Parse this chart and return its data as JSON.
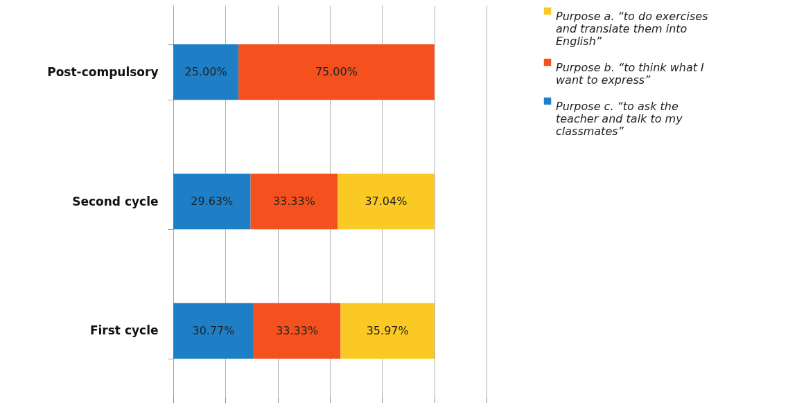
{
  "chart_data": {
    "type": "bar",
    "orientation": "horizontal",
    "stacked": true,
    "categories": [
      "Post-compulsory",
      "Second cycle",
      "First cycle"
    ],
    "series": [
      {
        "name": "Purpose c. “to ask the teacher and talk to my classmates”",
        "color": "#1f7fc6",
        "values": [
          25.0,
          29.63,
          30.77
        ],
        "value_labels": [
          "25.00%",
          "29.63%",
          "30.77%"
        ]
      },
      {
        "name": "Purpose b. “to think what I want to express”",
        "color": "#f4511e",
        "values": [
          75.0,
          33.33,
          33.33
        ],
        "value_labels": [
          "75.00%",
          "33.33%",
          "33.33%"
        ]
      },
      {
        "name": "Purpose a. “to do exercises and translate them into English”",
        "color": "#fbc924",
        "values": [
          null,
          37.04,
          35.97
        ],
        "value_labels": [
          null,
          "37.04%",
          "35.97%"
        ]
      }
    ],
    "xlim": [
      0,
      120
    ],
    "xticks": [
      {
        "value": 0,
        "label": null
      },
      {
        "value": 20,
        "label": null
      },
      {
        "value": 40,
        "label": null
      },
      {
        "value": 60,
        "label": null
      },
      {
        "value": 80,
        "label": null
      },
      {
        "value": 100,
        "label": null
      },
      {
        "value": 120,
        "label": null
      }
    ],
    "grid": "x",
    "legend": "right"
  }
}
